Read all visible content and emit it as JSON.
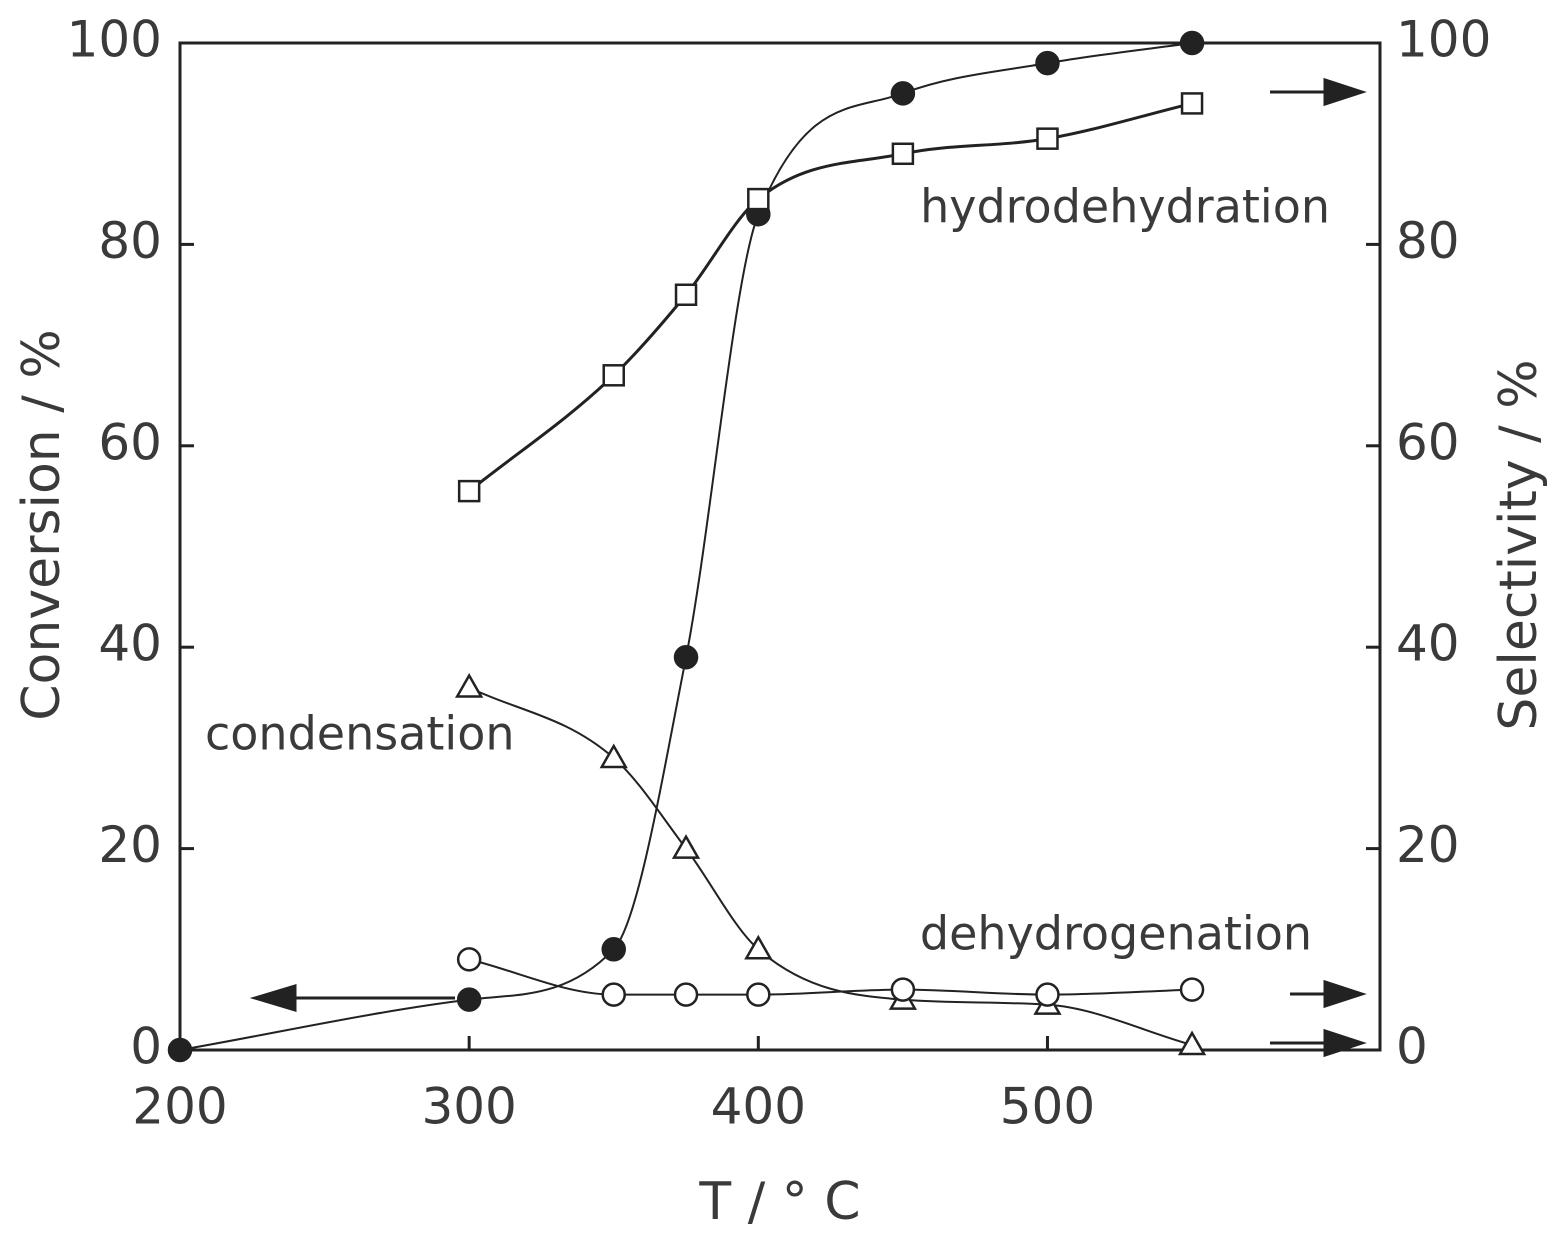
{
  "chart_data": {
    "type": "line",
    "x_label": "T / ° C",
    "y_label": "Conversion / %",
    "y2_label": "Selectivity / %",
    "xlim": [
      200,
      615
    ],
    "xticks": [
      200,
      300,
      400,
      500
    ],
    "ylim": [
      0,
      100
    ],
    "yticks": [
      0,
      20,
      40,
      60,
      80,
      100
    ],
    "y2lim": [
      0,
      100
    ],
    "y2ticks": [
      0,
      20,
      40,
      60,
      80,
      100
    ],
    "series": [
      {
        "color": "#222222",
        "marker": "circle",
        "filled": true,
        "axis": "y",
        "x": [
          200,
          300,
          350,
          375,
          400,
          450,
          500,
          550
        ],
        "values": [
          0,
          5,
          10,
          39,
          83,
          95,
          98,
          100
        ]
      },
      {
        "name": "hydrodehydration",
        "color": "#222222",
        "marker": "square",
        "filled": false,
        "axis": "y2",
        "x": [
          300,
          350,
          375,
          400,
          450,
          500,
          550
        ],
        "values": [
          55.5,
          67,
          75,
          84.5,
          89,
          90.5,
          94
        ]
      },
      {
        "name": "condensation",
        "color": "#222222",
        "marker": "triangle",
        "filled": false,
        "axis": "y2",
        "x": [
          300,
          350,
          375,
          400,
          450,
          500,
          550
        ],
        "values": [
          36,
          29,
          20,
          10,
          5,
          4.5,
          0.5
        ]
      },
      {
        "name": "dehydrogenation",
        "color": "#222222",
        "marker": "circle",
        "filled": false,
        "axis": "y2",
        "x": [
          300,
          350,
          375,
          400,
          450,
          500,
          550
        ],
        "values": [
          9,
          5.5,
          5.5,
          5.5,
          6,
          5.5,
          6
        ]
      }
    ]
  }
}
